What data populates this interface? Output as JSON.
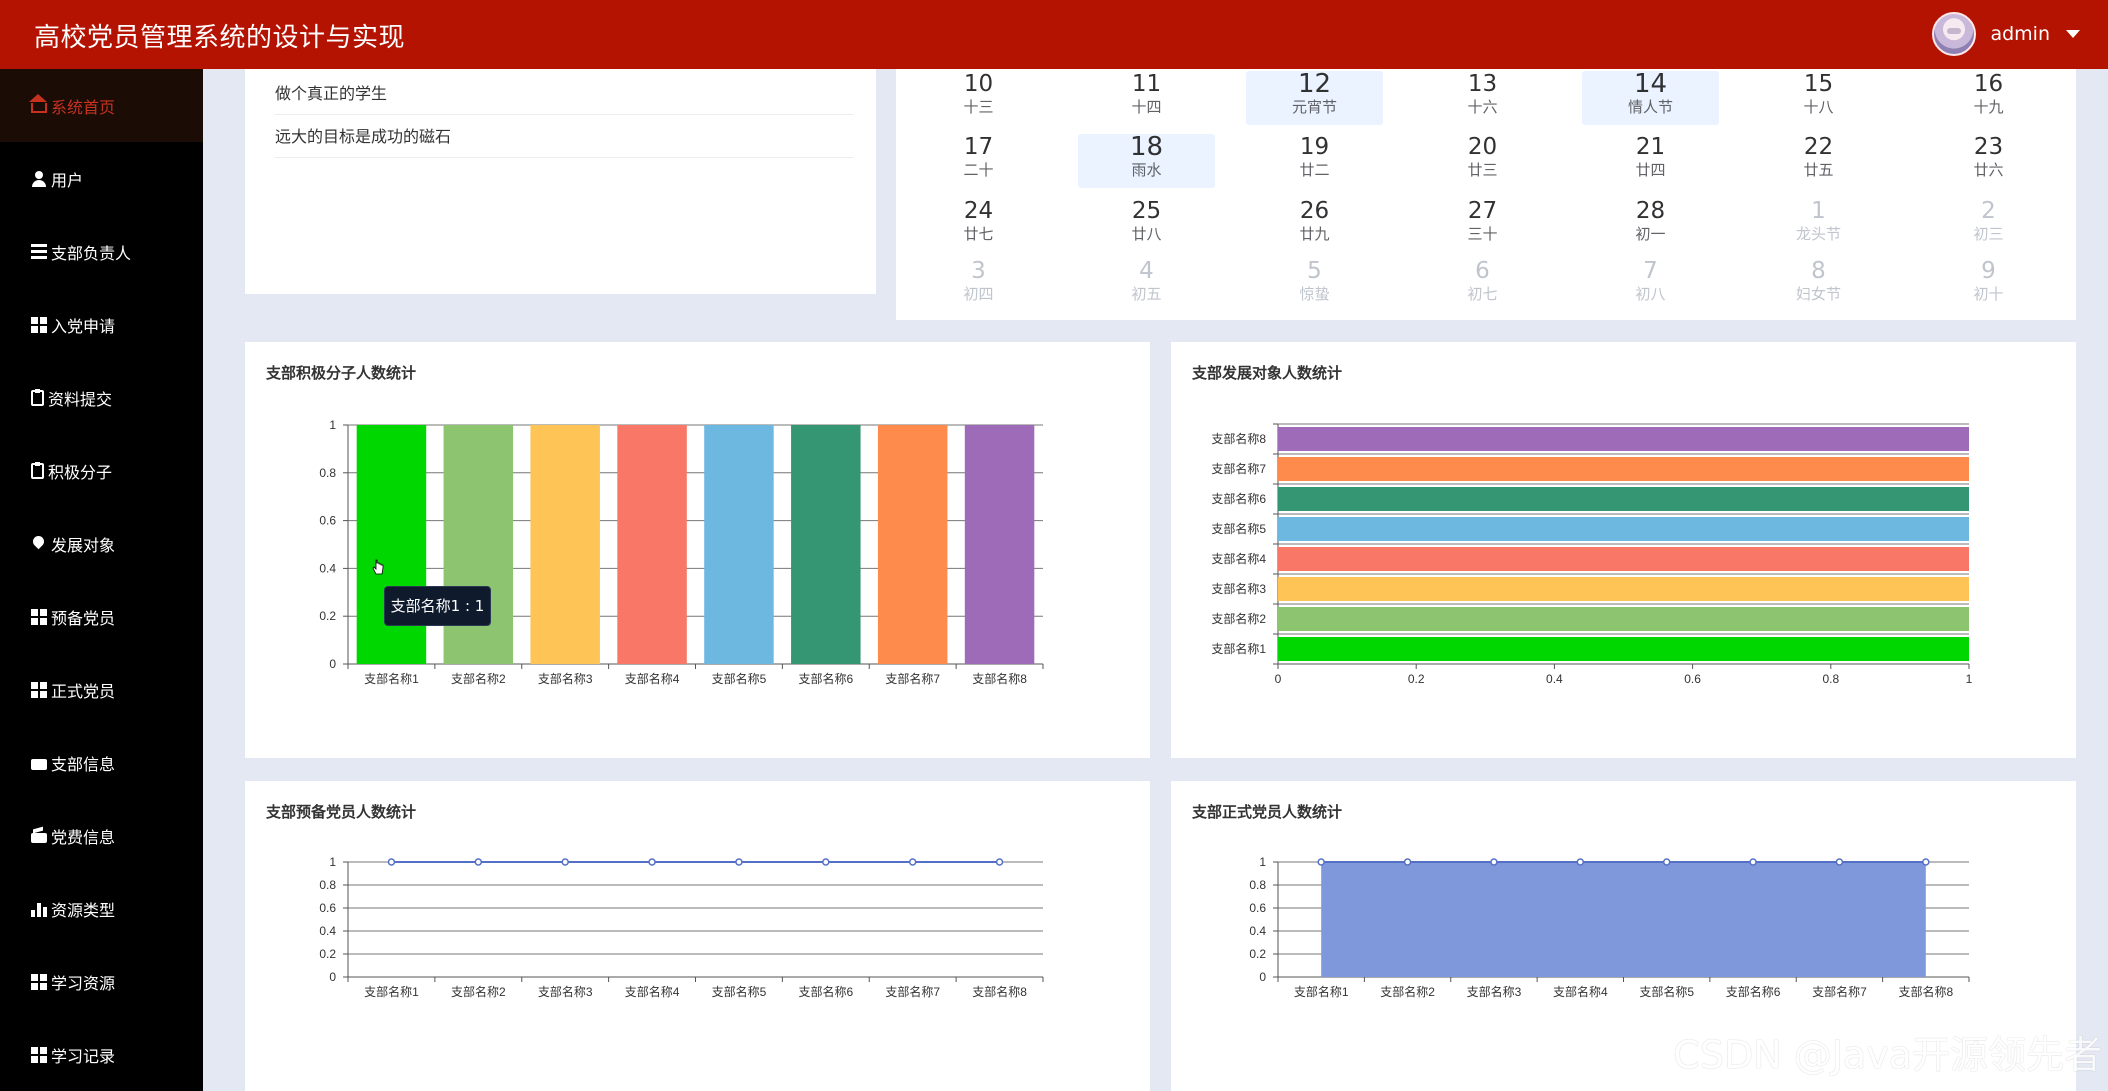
{
  "header": {
    "title": "高校党员管理系统的设计与实现",
    "username": "admin"
  },
  "sidebar": {
    "items": [
      {
        "label": "系统首页",
        "icon": "home-icon"
      },
      {
        "label": "用户",
        "icon": "user-icon"
      },
      {
        "label": "支部负责人",
        "icon": "list-icon"
      },
      {
        "label": "入党申请",
        "icon": "grid-icon"
      },
      {
        "label": "资料提交",
        "icon": "clipboard-icon"
      },
      {
        "label": "积极分子",
        "icon": "clipboard-check-icon"
      },
      {
        "label": "发展对象",
        "icon": "map-pin-icon"
      },
      {
        "label": "预备党员",
        "icon": "grid-icon"
      },
      {
        "label": "正式党员",
        "icon": "grid-icon"
      },
      {
        "label": "支部信息",
        "icon": "ticket-icon"
      },
      {
        "label": "党费信息",
        "icon": "wallet-icon"
      },
      {
        "label": "资源类型",
        "icon": "bar-chart-icon"
      },
      {
        "label": "学习资源",
        "icon": "grid-icon"
      },
      {
        "label": "学习记录",
        "icon": "grid-icon"
      }
    ],
    "active_index": 0
  },
  "notices": [
    "做个真正的学生",
    "远大的目标是成功的磁石"
  ],
  "calendar": {
    "rows": [
      [
        {
          "day": "10",
          "lunar": "十三"
        },
        {
          "day": "11",
          "lunar": "十四"
        },
        {
          "day": "12",
          "lunar": "元宵节",
          "highlight": true
        },
        {
          "day": "13",
          "lunar": "十六"
        },
        {
          "day": "14",
          "lunar": "情人节",
          "highlight": true
        },
        {
          "day": "15",
          "lunar": "十八"
        },
        {
          "day": "16",
          "lunar": "十九"
        }
      ],
      [
        {
          "day": "17",
          "lunar": "二十"
        },
        {
          "day": "18",
          "lunar": "雨水",
          "highlight": true
        },
        {
          "day": "19",
          "lunar": "廿二"
        },
        {
          "day": "20",
          "lunar": "廿三"
        },
        {
          "day": "21",
          "lunar": "廿四"
        },
        {
          "day": "22",
          "lunar": "廿五"
        },
        {
          "day": "23",
          "lunar": "廿六"
        }
      ],
      [
        {
          "day": "24",
          "lunar": "廿七"
        },
        {
          "day": "25",
          "lunar": "廿八"
        },
        {
          "day": "26",
          "lunar": "廿九"
        },
        {
          "day": "27",
          "lunar": "三十"
        },
        {
          "day": "28",
          "lunar": "初一"
        },
        {
          "day": "1",
          "lunar": "龙头节",
          "other": true
        },
        {
          "day": "2",
          "lunar": "初三",
          "other": true
        }
      ],
      [
        {
          "day": "3",
          "lunar": "初四",
          "other": true
        },
        {
          "day": "4",
          "lunar": "初五",
          "other": true
        },
        {
          "day": "5",
          "lunar": "惊蛰",
          "other": true
        },
        {
          "day": "6",
          "lunar": "初七",
          "other": true
        },
        {
          "day": "7",
          "lunar": "初八",
          "other": true
        },
        {
          "day": "8",
          "lunar": "妇女节",
          "other": true
        },
        {
          "day": "9",
          "lunar": "初十",
          "other": true
        }
      ]
    ]
  },
  "tooltip": {
    "text": "支部名称1 : 1"
  },
  "chart_data": [
    {
      "type": "bar",
      "title": "支部积极分子人数统计",
      "categories": [
        "支部名称1",
        "支部名称2",
        "支部名称3",
        "支部名称4",
        "支部名称5",
        "支部名称6",
        "支部名称7",
        "支部名称8"
      ],
      "values": [
        1,
        1,
        1,
        1,
        1,
        1,
        1,
        1
      ],
      "colors": [
        "#00d600",
        "#8dc46f",
        "#fec456",
        "#f97766",
        "#6db8e0",
        "#349672",
        "#fe8a4c",
        "#9d6bb8"
      ],
      "ylim": [
        0,
        1
      ],
      "yticks": [
        "0",
        "0.2",
        "0.4",
        "0.6",
        "0.8",
        "1"
      ],
      "grid": true
    },
    {
      "type": "bar",
      "orientation": "horizontal",
      "title": "支部发展对象人数统计",
      "categories": [
        "支部名称1",
        "支部名称2",
        "支部名称3",
        "支部名称4",
        "支部名称5",
        "支部名称6",
        "支部名称7",
        "支部名称8"
      ],
      "values": [
        1,
        1,
        1,
        1,
        1,
        1,
        1,
        1
      ],
      "colors": [
        "#00d600",
        "#8dc46f",
        "#fec456",
        "#f97766",
        "#6db8e0",
        "#349672",
        "#fe8a4c",
        "#9d6bb8"
      ],
      "xlim": [
        0,
        1
      ],
      "xticks": [
        "0",
        "0.2",
        "0.4",
        "0.6",
        "0.8",
        "1"
      ],
      "grid": true
    },
    {
      "type": "line",
      "title": "支部预备党员人数统计",
      "categories": [
        "支部名称1",
        "支部名称2",
        "支部名称3",
        "支部名称4",
        "支部名称5",
        "支部名称6",
        "支部名称7",
        "支部名称8"
      ],
      "values": [
        1,
        1,
        1,
        1,
        1,
        1,
        1,
        1
      ],
      "color": "#5470c6",
      "ylim": [
        0,
        1
      ],
      "yticks": [
        "0",
        "0.2",
        "0.4",
        "0.6",
        "0.8",
        "1"
      ],
      "grid": true
    },
    {
      "type": "area",
      "title": "支部正式党员人数统计",
      "categories": [
        "支部名称1",
        "支部名称2",
        "支部名称3",
        "支部名称4",
        "支部名称5",
        "支部名称6",
        "支部名称7",
        "支部名称8"
      ],
      "values": [
        1,
        1,
        1,
        1,
        1,
        1,
        1,
        1
      ],
      "color": "#5470c6",
      "fill": "#7f98dc",
      "ylim": [
        0,
        1
      ],
      "yticks": [
        "0",
        "0.2",
        "0.4",
        "0.6",
        "0.8",
        "1"
      ],
      "grid": true
    }
  ],
  "watermark": "CSDN @Java开源领先者"
}
